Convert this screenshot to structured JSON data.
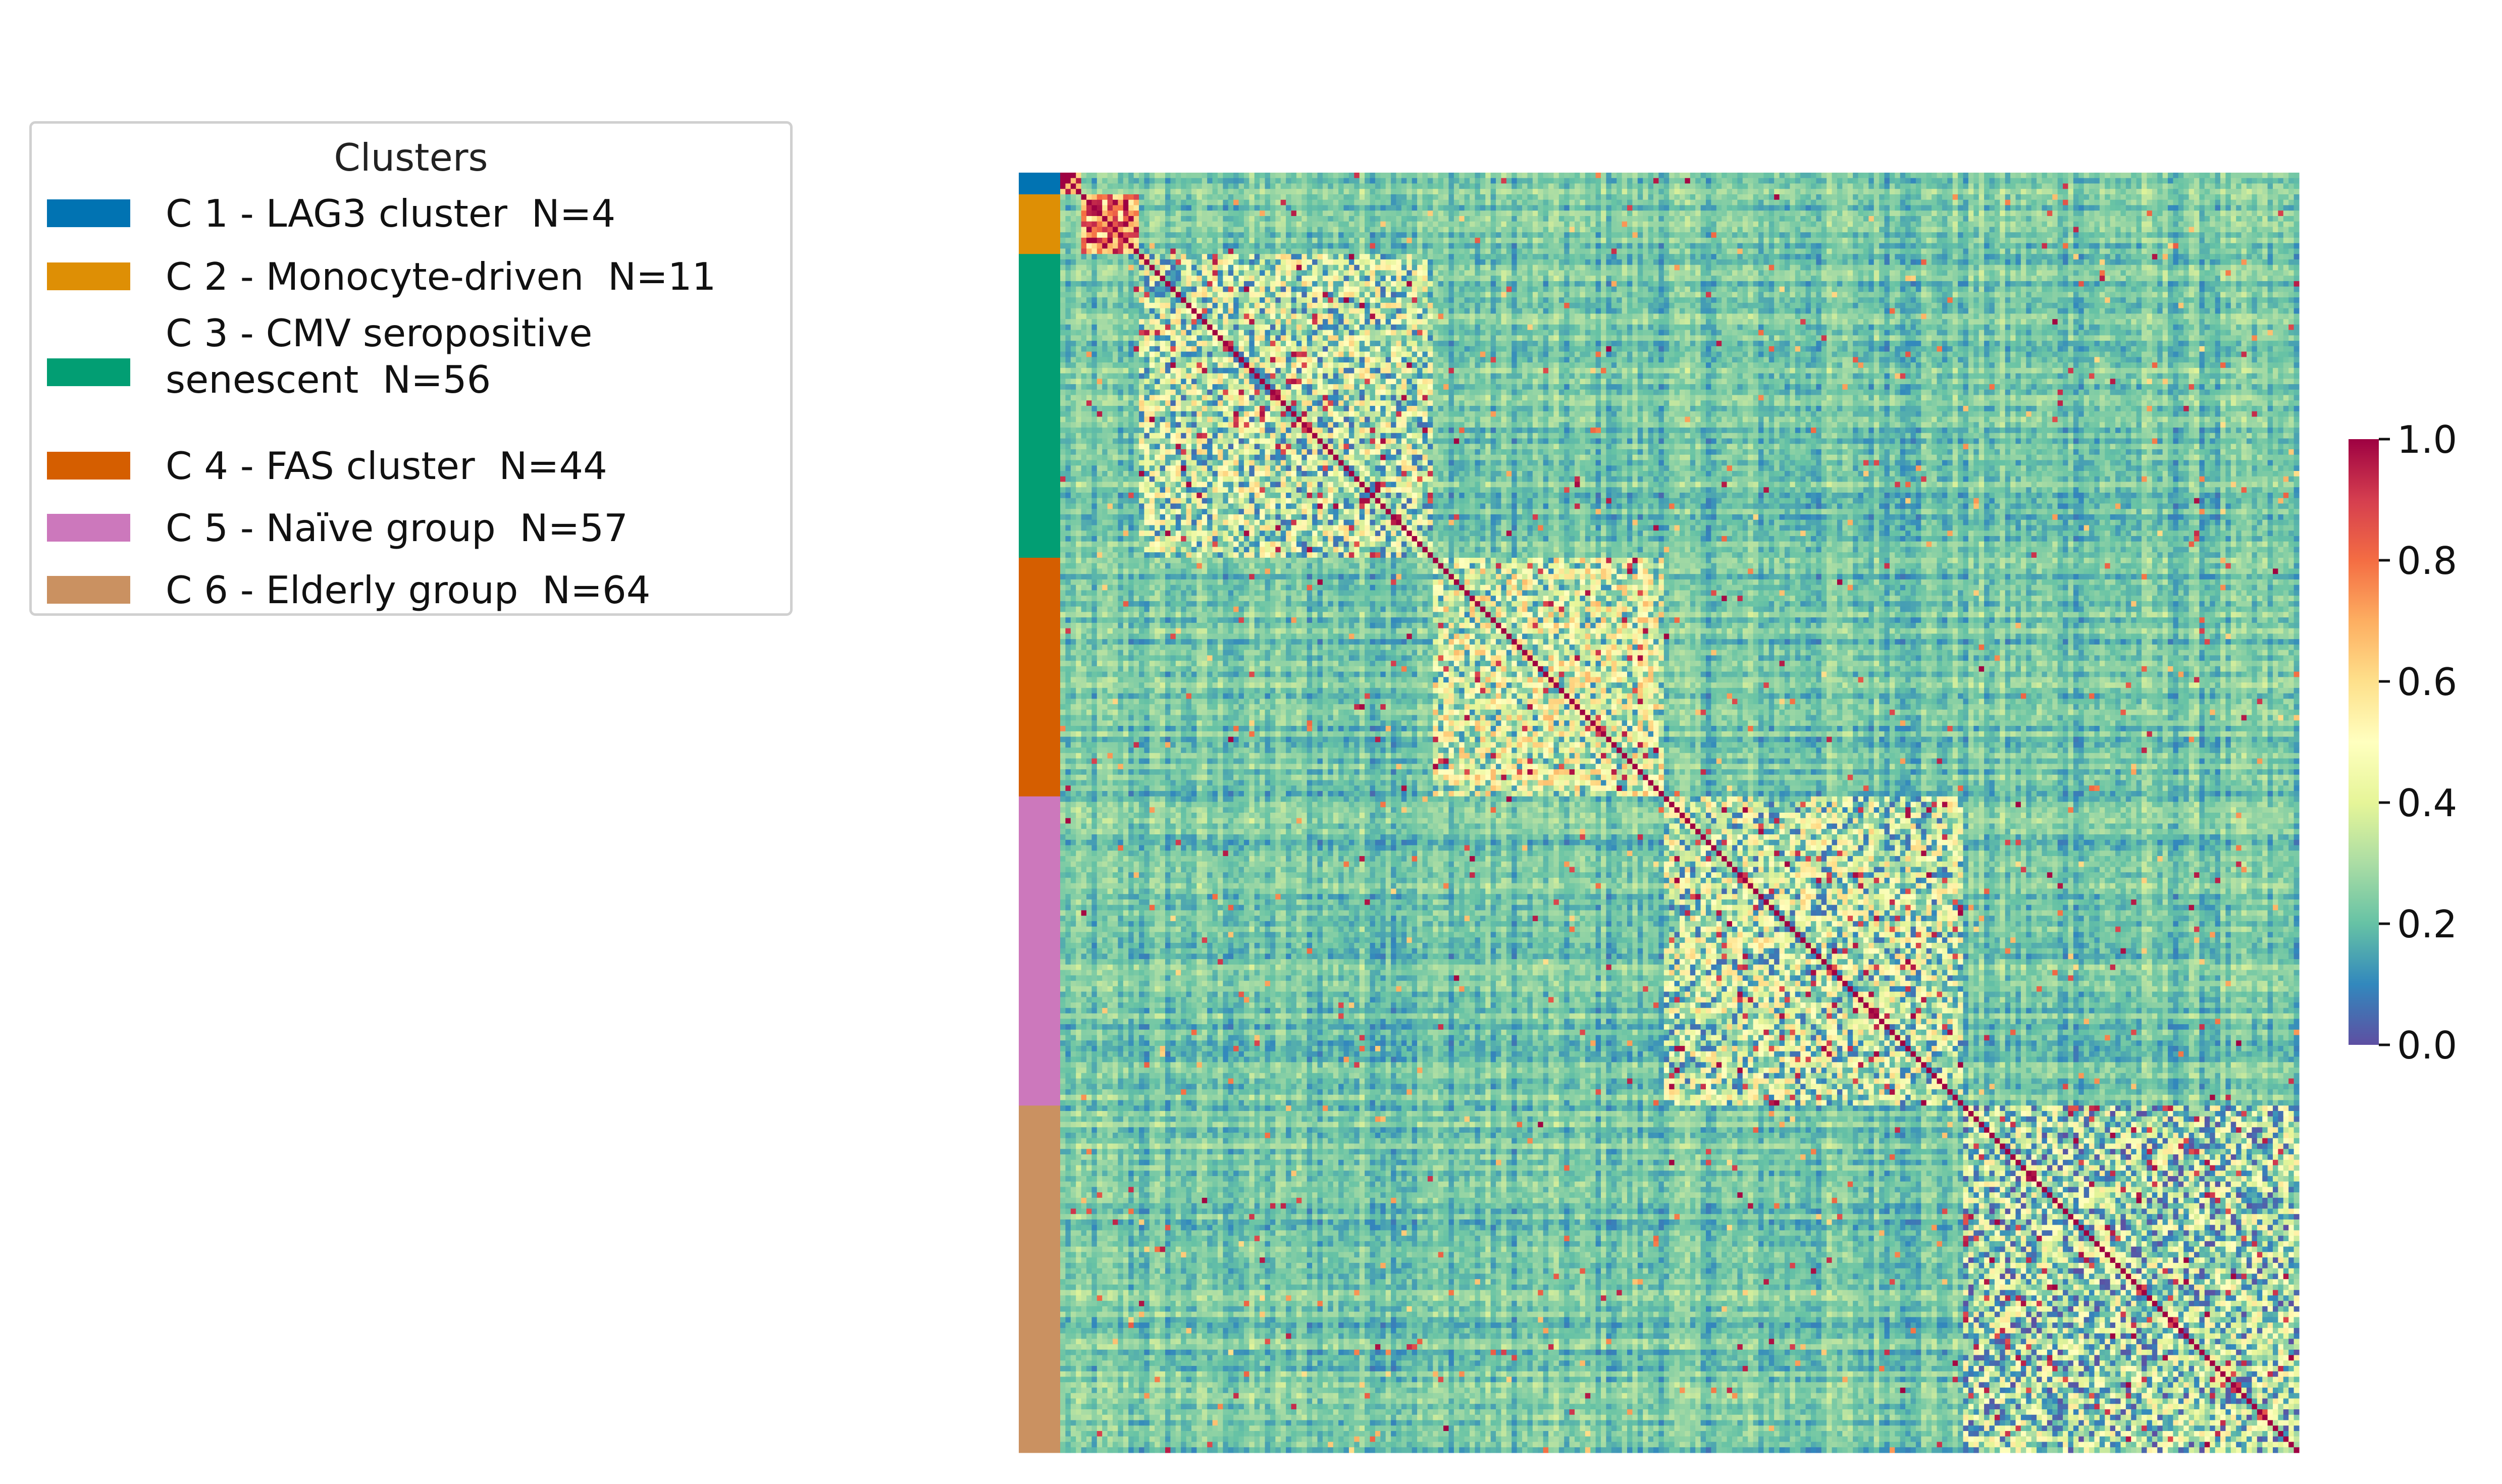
{
  "chart_data": {
    "type": "heatmap",
    "title": "",
    "xlabel": "",
    "ylabel": "",
    "matrix_size": 236,
    "value_range": [
      0.0,
      1.0
    ],
    "colormap": "Spectral_r",
    "colorbar": {
      "ticks": [
        0.0,
        0.2,
        0.4,
        0.6,
        0.8,
        1.0
      ],
      "tick_labels": [
        "0.0",
        "0.2",
        "0.4",
        "0.6",
        "0.8",
        "1.0"
      ],
      "position": "right"
    },
    "legend": {
      "title": "Clusters",
      "placement": "top-left",
      "entries": [
        {
          "label": "C 1 - LAG3 cluster  N=4",
          "color": "#0173b2",
          "n": 4
        },
        {
          "label": "C 2 - Monocyte-driven  N=11",
          "color": "#de8f05",
          "n": 11
        },
        {
          "label": "C 3 - CMV seropositive\nsenescent  N=56",
          "color": "#029e73",
          "n": 56
        },
        {
          "label": "C 4 - FAS cluster  N=44",
          "color": "#d55e00",
          "n": 44
        },
        {
          "label": "C 5 - Naïve group  N=57",
          "color": "#cc78bc",
          "n": 57
        },
        {
          "label": "C 6 - Elderly group  N=64",
          "color": "#ca9161",
          "n": 64
        }
      ]
    },
    "block_structure": {
      "within_cluster_mean": [
        0.9,
        0.8,
        0.35,
        0.4,
        0.35,
        0.3
      ],
      "between_cluster_mean": 0.1,
      "diagonal_value": 1.0
    }
  }
}
